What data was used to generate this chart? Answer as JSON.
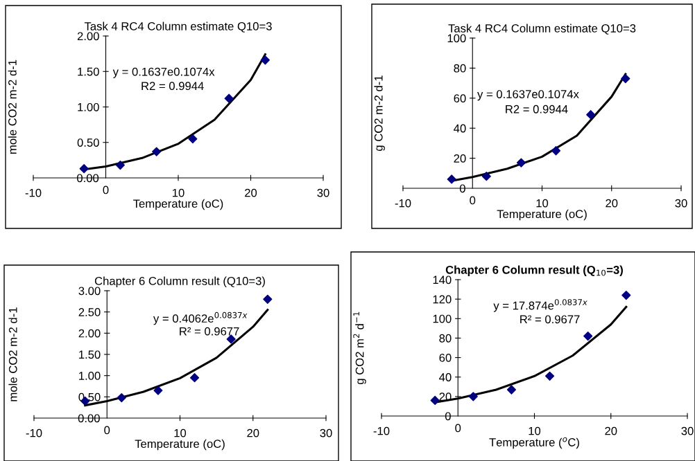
{
  "chart_data": [
    {
      "type": "scatter",
      "title": "Task 4 RC4 Column estimate Q10=3",
      "xlabel": "Temperature (oC)",
      "ylabel": "mole CO2 m-2 d-1",
      "marker": "diamond",
      "grid": false,
      "legend": false,
      "xlim": [
        -10,
        30
      ],
      "xticks": [
        -10,
        0,
        10,
        20,
        30
      ],
      "ylim": [
        0,
        2
      ],
      "yticks": [
        {
          "value": 0,
          "label": "0.00"
        },
        {
          "value": 0.5,
          "label": "0.50"
        },
        {
          "value": 1,
          "label": "1.00"
        },
        {
          "value": 1.5,
          "label": "1.50"
        },
        {
          "value": 2,
          "label": "2.00"
        }
      ],
      "annotations": [
        "y = 0.1637e0.1074x",
        "R2 = 0.9944"
      ],
      "series": [
        {
          "color": "#000080",
          "x": [
            -3,
            2,
            7,
            12,
            17,
            22
          ],
          "values": [
            0.13,
            0.18,
            0.37,
            0.55,
            1.12,
            1.66
          ]
        },
        {
          "type": "line",
          "color": "#000000",
          "marker": "none",
          "x": [
            -3,
            0,
            5,
            10,
            15,
            20,
            22
          ],
          "values": [
            0.12,
            0.16,
            0.28,
            0.48,
            0.82,
            1.38,
            1.74
          ]
        }
      ]
    },
    {
      "type": "scatter",
      "title": "Task 4 RC4 Column estimate Q10=3",
      "xlabel": "Temperature (oC)",
      "ylabel": "g CO2 m-2 d-1",
      "marker": "diamond",
      "grid": false,
      "legend": false,
      "xlim": [
        -10,
        30
      ],
      "xticks": [
        -10,
        0,
        10,
        20,
        30
      ],
      "ylim": [
        0,
        100
      ],
      "yticks": [
        0,
        20,
        40,
        60,
        80,
        100
      ],
      "annotations": [
        "y = 0.1637e0.1074x",
        "R2 = 0.9944"
      ],
      "series": [
        {
          "color": "#000080",
          "x": [
            -3,
            2,
            7,
            12,
            17,
            22
          ],
          "values": [
            6,
            8,
            17,
            25,
            49,
            73
          ]
        },
        {
          "type": "line",
          "color": "#000000",
          "marker": "none",
          "x": [
            -3,
            0,
            5,
            10,
            15,
            20,
            22
          ],
          "values": [
            5,
            7.5,
            13,
            21,
            35,
            61,
            76
          ]
        }
      ]
    },
    {
      "type": "scatter",
      "title": "Chapter 6 Column result (Q10=3)",
      "xlabel": "Temperature (oC)",
      "ylabel": "mole CO2 m-2 d-1",
      "marker": "diamond",
      "grid": false,
      "legend": false,
      "xlim": [
        -10,
        30
      ],
      "xticks": [
        -10,
        0,
        10,
        20,
        30
      ],
      "ylim": [
        0,
        3
      ],
      "yticks": [
        {
          "value": 0,
          "label": "0.00"
        },
        {
          "value": 0.5,
          "label": "0.50"
        },
        {
          "value": 1,
          "label": "1.00"
        },
        {
          "value": 1.5,
          "label": "1.50"
        },
        {
          "value": 2,
          "label": "2.00"
        },
        {
          "value": 2.5,
          "label": "2.50"
        },
        {
          "value": 3,
          "label": "3.00"
        }
      ],
      "annotations": [
        "y = 0.4062e$^{0.0837x}$",
        "R² = 0.9677"
      ],
      "series": [
        {
          "color": "#000080",
          "x": [
            -3,
            2,
            7,
            12,
            17,
            22
          ],
          "values": [
            0.4,
            0.48,
            0.65,
            0.95,
            1.86,
            2.8
          ]
        },
        {
          "type": "line",
          "color": "#000000",
          "marker": "none",
          "x": [
            -3,
            0,
            5,
            10,
            15,
            20,
            22
          ],
          "values": [
            0.3,
            0.4,
            0.62,
            0.94,
            1.42,
            2.15,
            2.55
          ]
        }
      ]
    },
    {
      "type": "scatter",
      "title": "Chapter 6 Column result (Q$_{10}$=3)",
      "xlabel": "Temperature ($^{o}$C)",
      "ylabel": "g CO2 m$^{2}$ d$^{−1}$",
      "marker": "diamond",
      "grid": false,
      "legend": false,
      "xlim": [
        -10,
        30
      ],
      "xticks": [
        -10,
        0,
        10,
        20,
        30
      ],
      "ylim": [
        0,
        140
      ],
      "yticks": [
        0,
        20,
        40,
        60,
        80,
        100,
        120,
        140
      ],
      "annotations": [
        "y = 17.874e$^{0.0837x}$",
        "R² = 0.9677"
      ],
      "series": [
        {
          "color": "#000080",
          "x": [
            -3,
            2,
            7,
            12,
            17,
            22
          ],
          "values": [
            16,
            20,
            27,
            41,
            82,
            124
          ]
        },
        {
          "type": "line",
          "color": "#000000",
          "marker": "none",
          "x": [
            -3,
            0,
            5,
            10,
            15,
            20,
            22
          ],
          "values": [
            14,
            18,
            27,
            41,
            62,
            94,
            112
          ]
        }
      ]
    }
  ]
}
